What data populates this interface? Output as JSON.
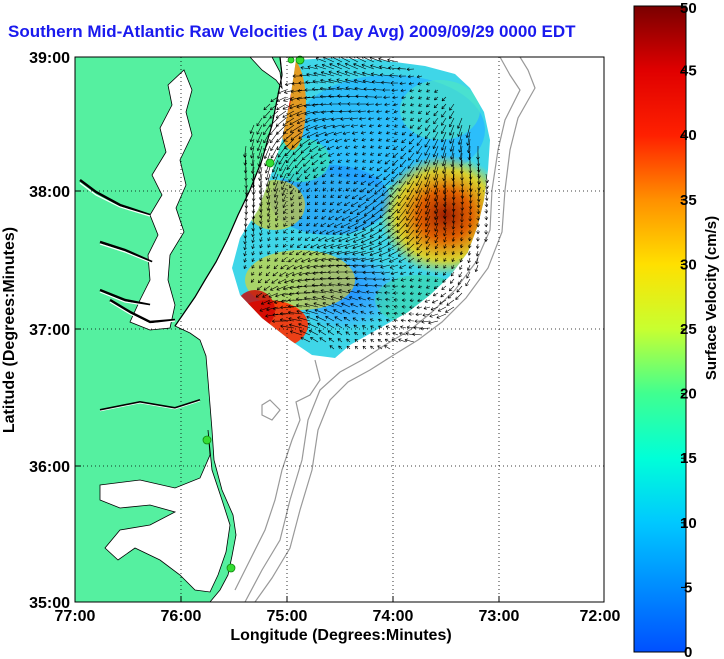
{
  "title": "Southern Mid-Atlantic Raw Velocities (1 Day Avg) 2009/09/29 0000 EDT",
  "x_axis": {
    "label": "Longitude (Degrees:Minutes)",
    "ticks": [
      "77:00",
      "76:00",
      "75:00",
      "74:00",
      "73:00",
      "72:00"
    ]
  },
  "y_axis": {
    "label": "Latitude (Degrees:Minutes)",
    "ticks": [
      "39:00",
      "38:00",
      "37:00",
      "36:00",
      "35:00"
    ]
  },
  "colorbar": {
    "label": "Surface Velocity (cm/s)",
    "ticks": [
      "50",
      "45",
      "40",
      "35",
      "30",
      "25",
      "20",
      "15",
      "10",
      "5",
      "0"
    ],
    "min": 0,
    "max": 50
  },
  "colors": {
    "title": "#1a1aee",
    "land": "#55f0a0",
    "site_marker": "#33dd33"
  }
}
